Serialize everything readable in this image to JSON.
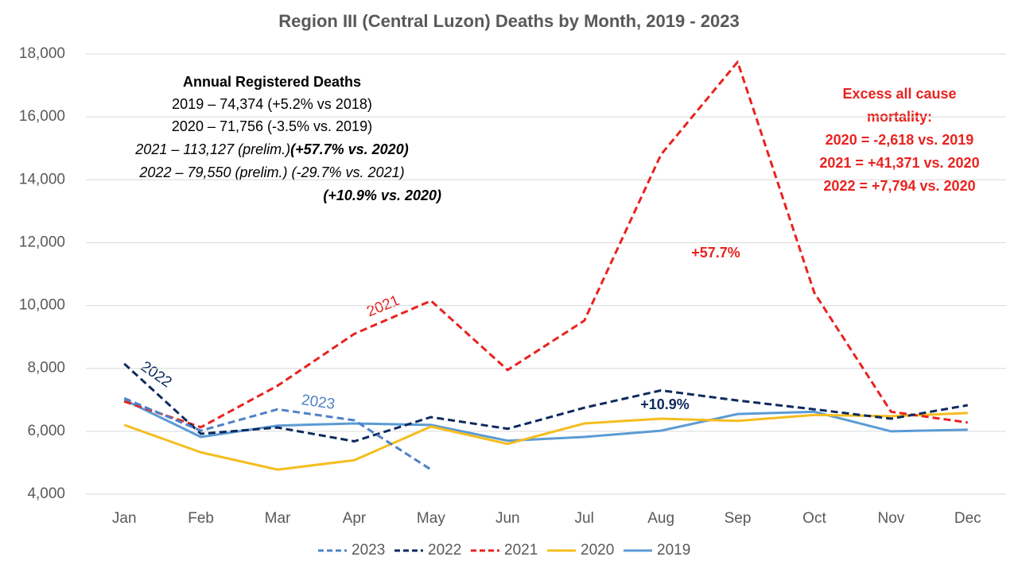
{
  "chart_data": {
    "type": "line",
    "title": "Region III (Central Luzon) Deaths by Month, 2019 - 2023",
    "categories": [
      "Jan",
      "Feb",
      "Mar",
      "Apr",
      "May",
      "Jun",
      "Jul",
      "Aug",
      "Sep",
      "Oct",
      "Nov",
      "Dec"
    ],
    "series": [
      {
        "name": "2023",
        "color": "#4f81c7",
        "dashed": true,
        "values": [
          7050,
          6020,
          6700,
          6350,
          4780,
          null,
          null,
          null,
          null,
          null,
          null,
          null
        ]
      },
      {
        "name": "2022",
        "color": "#0d2a5e",
        "dashed": true,
        "values": [
          8150,
          5920,
          6120,
          5680,
          6450,
          6080,
          6750,
          7300,
          6980,
          6700,
          6400,
          6830
        ]
      },
      {
        "name": "2021",
        "color": "#e8231f",
        "dashed": true,
        "values": [
          6950,
          6130,
          7450,
          9100,
          10150,
          7950,
          9520,
          14800,
          17750,
          10400,
          6620,
          6280
        ]
      },
      {
        "name": "2020",
        "color": "#f5bd1f",
        "dashed": false,
        "values": [
          6200,
          5330,
          4780,
          5080,
          6150,
          5600,
          6250,
          6400,
          6330,
          6520,
          6480,
          6580
        ]
      },
      {
        "name": "2019",
        "color": "#5b9bd5",
        "dashed": false,
        "values": [
          7000,
          5820,
          6180,
          6250,
          6200,
          5700,
          5820,
          6020,
          6550,
          6620,
          6000,
          6050
        ]
      }
    ],
    "ylim": [
      4000,
      18000
    ],
    "yticks": [
      {
        "value": 4000,
        "label": "4,000"
      },
      {
        "value": 6000,
        "label": "6,000"
      },
      {
        "value": 8000,
        "label": "8,000"
      },
      {
        "value": 10000,
        "label": "10,000"
      },
      {
        "value": 12000,
        "label": "12,000"
      },
      {
        "value": 14000,
        "label": "14,000"
      },
      {
        "value": 16000,
        "label": "16,000"
      },
      {
        "value": 18000,
        "label": "18,000"
      }
    ],
    "grid": true,
    "legend": "bottom",
    "annual_deaths": {
      "heading": "Annual Registered Deaths",
      "line1": "2019 – 74,374 (+5.2% vs 2018)",
      "line2": "2020 – 71,756 (-3.5% vs. 2019)",
      "line3a": "2021 – 113,127 (prelim.)",
      "line3b": "(+57.7% vs. 2020)",
      "line4": "2022 – 79,550 (prelim.) (-29.7% vs. 2021)",
      "line5": "(+10.9% vs. 2020)"
    },
    "excess": [
      "Excess all cause",
      "mortality:",
      "2020 = -2,618 vs. 2019",
      "2021 = +41,371 vs. 2020",
      "2022 = +7,794 vs. 2020"
    ],
    "annotations": [
      "+10.9%",
      "+57.7%"
    ]
  }
}
